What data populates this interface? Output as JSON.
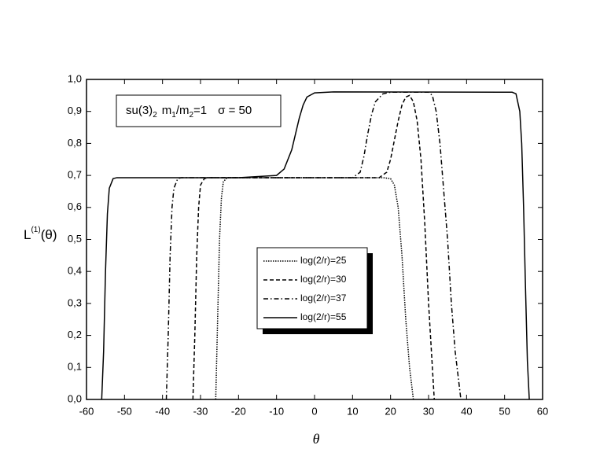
{
  "chart_data": {
    "type": "line",
    "xlabel": "θ",
    "ylabel": {
      "main": "L",
      "superscript": "(1)",
      "suffix": "(θ)"
    },
    "annotation": [
      {
        "text": "su(3)",
        "sub": false
      },
      {
        "text": "2",
        "sub": true
      },
      {
        "text": "m",
        "sub": false
      },
      {
        "text": "1",
        "sub": true
      },
      {
        "text": "/m",
        "sub": false
      },
      {
        "text": "2",
        "sub": true
      },
      {
        "text": "=1",
        "sub": false
      },
      {
        "text": "σ = 50",
        "sub": false
      }
    ],
    "xlim": [
      -60,
      60
    ],
    "xticks": [
      -60,
      -50,
      -40,
      -30,
      -20,
      -10,
      0,
      10,
      20,
      30,
      40,
      50,
      60
    ],
    "ylim": [
      0,
      1.0
    ],
    "yticks": [
      {
        "value": 0,
        "label": "0,0"
      },
      {
        "value": 0.1,
        "label": "0,1"
      },
      {
        "value": 0.2,
        "label": "0,2"
      },
      {
        "value": 0.3,
        "label": "0,3"
      },
      {
        "value": 0.4,
        "label": "0,4"
      },
      {
        "value": 0.5,
        "label": "0,5"
      },
      {
        "value": 0.6,
        "label": "0,6"
      },
      {
        "value": 0.7,
        "label": "0,7"
      },
      {
        "value": 0.8,
        "label": "0,8"
      },
      {
        "value": 0.9,
        "label": "0,9"
      },
      {
        "value": 1.0,
        "label": "1,0"
      }
    ],
    "legend": "center",
    "series": [
      {
        "name": "log(2/r)=25",
        "color": "#000000",
        "line_style": "dotted",
        "x": [
          -26,
          -25.5,
          -25,
          -24.5,
          -24,
          -23,
          18,
          20,
          21,
          22,
          23,
          24,
          25,
          26
        ],
        "values": [
          0,
          0.25,
          0.5,
          0.63,
          0.68,
          0.693,
          0.693,
          0.69,
          0.67,
          0.6,
          0.45,
          0.25,
          0.1,
          0
        ]
      },
      {
        "name": "log(2/r)=30",
        "color": "#000000",
        "line_style": "dashed",
        "x": [
          -32,
          -31.5,
          -31,
          -30.5,
          -30,
          -29,
          -28,
          17,
          19,
          20,
          21,
          22,
          23,
          24,
          25,
          26,
          27,
          28,
          29,
          30,
          31,
          31.5
        ],
        "values": [
          0,
          0.2,
          0.45,
          0.6,
          0.67,
          0.69,
          0.693,
          0.693,
          0.71,
          0.75,
          0.81,
          0.87,
          0.92,
          0.945,
          0.95,
          0.93,
          0.87,
          0.75,
          0.55,
          0.3,
          0.1,
          0
        ]
      },
      {
        "name": "log(2/r)=37",
        "color": "#000000",
        "line_style": "dashdot",
        "x": [
          -39,
          -38.5,
          -38,
          -37.5,
          -37,
          -36,
          -35,
          10,
          12,
          13,
          14,
          15,
          16,
          18,
          20,
          30,
          31,
          32,
          33,
          34,
          35,
          36,
          37,
          38,
          38.5
        ],
        "values": [
          0,
          0.2,
          0.45,
          0.6,
          0.66,
          0.69,
          0.693,
          0.693,
          0.71,
          0.76,
          0.83,
          0.89,
          0.93,
          0.955,
          0.96,
          0.96,
          0.95,
          0.9,
          0.8,
          0.65,
          0.5,
          0.3,
          0.15,
          0.05,
          0
        ]
      },
      {
        "name": "log(2/r)=55",
        "color": "#000000",
        "line_style": "solid",
        "x": [
          -56,
          -55.5,
          -55,
          -54.5,
          -54,
          -53,
          -52,
          -20,
          -10,
          -8,
          -6,
          -5,
          -4,
          -3,
          -2,
          0,
          5,
          52,
          53,
          54,
          54.5,
          55,
          55.5,
          56,
          56.5
        ],
        "values": [
          0,
          0.15,
          0.4,
          0.58,
          0.66,
          0.69,
          0.693,
          0.693,
          0.7,
          0.72,
          0.78,
          0.83,
          0.88,
          0.92,
          0.945,
          0.958,
          0.961,
          0.96,
          0.955,
          0.9,
          0.8,
          0.6,
          0.35,
          0.12,
          0
        ]
      }
    ]
  }
}
